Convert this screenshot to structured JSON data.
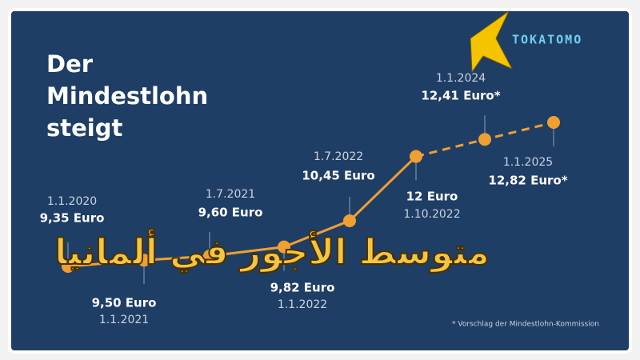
{
  "chart_data": {
    "type": "line",
    "title": "Der Mindestlohn steigt",
    "categories": [
      "1.1.2020",
      "1.1.2021",
      "1.7.2021",
      "1.1.2022",
      "1.7.2022",
      "1.10.2022",
      "1.1.2024",
      "1.1.2025"
    ],
    "series": [
      {
        "color": "#f0a030",
        "values": [
          9.35,
          9.5,
          9.6,
          9.82,
          10.45,
          12,
          12.41,
          12.82
        ],
        "value_labels": [
          "9,35 Euro",
          "9,50 Euro",
          "9,60 Euro",
          "9,82 Euro",
          "10,45 Euro",
          "12 Euro",
          "12,41 Euro*",
          "12,82 Euro*"
        ]
      }
    ],
    "footnote": "* Vorschlag der Mindestlohn-Kommission"
  },
  "overlay_text": "متوسط الأجور في ألمانيا",
  "logo": "TOKATOMO"
}
